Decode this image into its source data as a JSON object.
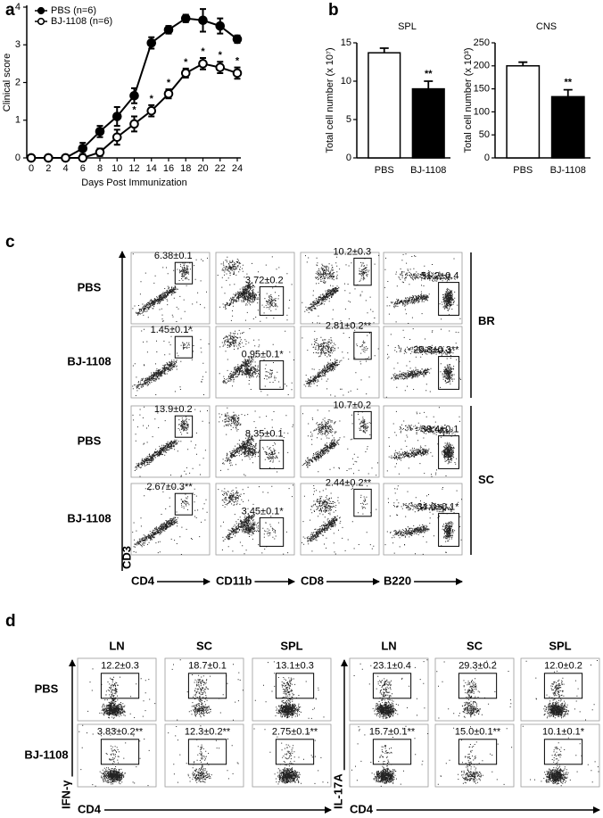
{
  "panel_labels": [
    "a",
    "b",
    "c",
    "d"
  ],
  "chart_data": [
    {
      "type": "line",
      "x_label": "Days Post Immunization",
      "y_label": "Clinical score",
      "x": [
        0,
        2,
        4,
        6,
        8,
        10,
        12,
        14,
        16,
        18,
        20,
        22,
        24
      ],
      "xlim": [
        0,
        24
      ],
      "xticks": [
        0,
        2,
        4,
        6,
        8,
        10,
        12,
        14,
        16,
        18,
        20,
        22,
        24
      ],
      "ylim": [
        0,
        4
      ],
      "yticks": [
        0,
        1,
        2,
        3,
        4
      ],
      "legend": "upper left",
      "series": [
        {
          "name": "PBS (n=6)",
          "color": "#000000",
          "marker": "filled",
          "values": [
            0,
            0,
            0,
            0.25,
            0.7,
            1.1,
            1.65,
            3.05,
            3.4,
            3.7,
            3.65,
            3.5,
            3.15
          ],
          "errors": [
            0,
            0,
            0,
            0.15,
            0.15,
            0.25,
            0.2,
            0.15,
            0.1,
            0.1,
            0.3,
            0.2,
            0.1
          ]
        },
        {
          "name": "BJ-1108 (n=6)",
          "color": "#000000",
          "marker": "open",
          "values": [
            0,
            0,
            0,
            0,
            0.15,
            0.55,
            0.9,
            1.25,
            1.7,
            2.25,
            2.5,
            2.4,
            2.25
          ],
          "errors": [
            0,
            0,
            0,
            0,
            0.1,
            0.2,
            0.2,
            0.15,
            0.12,
            0.12,
            0.15,
            0.15,
            0.15
          ]
        }
      ],
      "annotations": [
        {
          "x": 12,
          "series": 1,
          "text": "*"
        },
        {
          "x": 14,
          "series": 1,
          "text": "*"
        },
        {
          "x": 16,
          "series": 1,
          "text": "*"
        },
        {
          "x": 18,
          "series": 1,
          "text": "*"
        },
        {
          "x": 20,
          "series": 1,
          "text": "*"
        },
        {
          "x": 22,
          "series": 1,
          "text": "*"
        },
        {
          "x": 24,
          "series": 1,
          "text": "*"
        }
      ]
    },
    {
      "type": "bar",
      "title": "SPL",
      "y_label": "Total cell number (x 10⁷)",
      "categories": [
        "PBS",
        "BJ-1108"
      ],
      "values": [
        13.7,
        9.0
      ],
      "errors": [
        0.6,
        1.0
      ],
      "colors": [
        "#ffffff",
        "#000000"
      ],
      "ylim": [
        0,
        15
      ],
      "yticks": [
        0,
        5,
        10,
        15
      ],
      "annotations": [
        {
          "category": 1,
          "text": "**"
        }
      ]
    },
    {
      "type": "bar",
      "title": "CNS",
      "y_label": "Total cell number (x 10³)",
      "categories": [
        "PBS",
        "BJ-1108"
      ],
      "values": [
        200,
        133
      ],
      "errors": [
        8,
        15
      ],
      "colors": [
        "#ffffff",
        "#000000"
      ],
      "ylim": [
        0,
        250
      ],
      "yticks": [
        0,
        50,
        100,
        150,
        200,
        250
      ],
      "annotations": [
        {
          "category": 1,
          "text": "**"
        }
      ]
    }
  ],
  "panel_c": {
    "rows": [
      "PBS",
      "BJ-1108",
      "PBS",
      "BJ-1108"
    ],
    "groups": [
      "BR",
      "SC"
    ],
    "y_label": "CD3",
    "columns": [
      "CD4",
      "CD11b",
      "CD8",
      "B220"
    ],
    "gates": [
      [
        "6.38±0.1",
        "3.72±0.2",
        "10.2±0.3",
        "51.2±0.4"
      ],
      [
        "1.45±0.1*",
        "0.95±0.1*",
        "2.81±0.2**",
        "29.8±0.3**"
      ],
      [
        "13.9±0.2",
        "8.35±0.1",
        "10.7±0.2",
        "38.4±0.1"
      ],
      [
        "2.67±0.3**",
        "3.45±0.1*",
        "2.44±0.2**",
        "34.0±0.1*"
      ]
    ]
  },
  "panel_d": {
    "rows": [
      "PBS",
      "BJ-1108"
    ],
    "groups": [
      {
        "y_label": "IFN-γ",
        "x_label": "CD4",
        "columns": [
          "LN",
          "SC",
          "SPL"
        ],
        "gates": [
          [
            "12.2±0.3",
            "18.7±0.1",
            "13.1±0.3"
          ],
          [
            "3.83±0.2**",
            "12.3±0.2**",
            "2.75±0.1**"
          ]
        ]
      },
      {
        "y_label": "IL-17A",
        "x_label": "CD4",
        "columns": [
          "LN",
          "SC",
          "SPL"
        ],
        "gates": [
          [
            "23.1±0.4",
            "29.3±0.2",
            "12.0±0.2"
          ],
          [
            "15.7±0.1**",
            "15.0±0.1**",
            "10.1±0.1*"
          ]
        ]
      }
    ]
  }
}
